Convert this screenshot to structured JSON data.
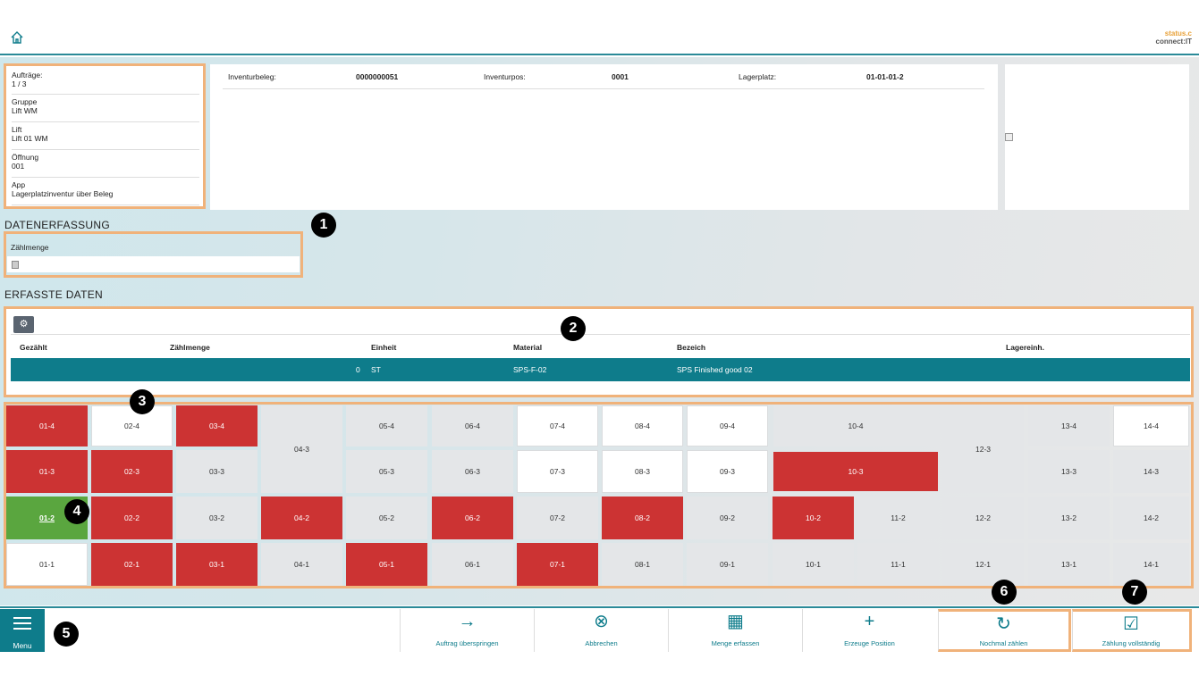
{
  "brand": {
    "line1": "status.c",
    "line2": "connect:IT"
  },
  "info": [
    {
      "label": "Aufträge:",
      "value": "1 / 3"
    },
    {
      "label": "Gruppe",
      "value": "Lift WM"
    },
    {
      "label": "Lift",
      "value": "Lift 01 WM"
    },
    {
      "label": "Öffnung",
      "value": "001"
    },
    {
      "label": "App",
      "value": "Lagerplatzinventur über Beleg"
    }
  ],
  "header": {
    "beleg_label": "Inventurbeleg:",
    "beleg_value": "0000000051",
    "pos_label": "Inventurpos:",
    "pos_value": "0001",
    "platz_label": "Lagerplatz:",
    "platz_value": "01-01-01-2"
  },
  "section1": {
    "title": "DATENERFASSUNG",
    "field_label": "Zählmenge",
    "field_value": ""
  },
  "section2": {
    "title": "ERFASSTE DATEN"
  },
  "table": {
    "columns": [
      "Gezählt",
      "Zählmenge",
      "Einheit",
      "Material",
      "Bezeich",
      "Lagereinh."
    ],
    "row": {
      "gezaehlt": "",
      "zaehlmenge": "0",
      "einheit": "ST",
      "material": "SPS-F-02",
      "bezeich": "SPS Finished good 02",
      "lagereinh": ""
    }
  },
  "grid": {
    "r4": [
      "01-4",
      "02-4",
      "03-4",
      "04-3",
      "05-4",
      "06-4",
      "07-4",
      "08-4",
      "09-4",
      "10-4",
      "12-3",
      "13-4",
      "14-4"
    ],
    "r3": [
      "01-3",
      "02-3",
      "03-3",
      "05-3",
      "06-3",
      "07-3",
      "08-3",
      "09-3",
      "10-3",
      "13-3",
      "14-3"
    ],
    "r2": [
      "01-2",
      "02-2",
      "03-2",
      "04-2",
      "05-2",
      "06-2",
      "07-2",
      "08-2",
      "09-2",
      "10-2",
      "11-2",
      "12-2",
      "13-2",
      "14-2"
    ],
    "r1": [
      "01-1",
      "02-1",
      "03-1",
      "04-1",
      "05-1",
      "06-1",
      "07-1",
      "08-1",
      "09-1",
      "10-1",
      "11-1",
      "12-1",
      "13-1",
      "14-1"
    ]
  },
  "footer": {
    "menu": "Menu",
    "actions": [
      "Auftrag überspringen",
      "Abbrechen",
      "Menge erfassen",
      "Erzeuge Position",
      "Nochmal zählen",
      "Zählung vollständig"
    ]
  },
  "badges": [
    "1",
    "2",
    "3",
    "4",
    "5",
    "6",
    "7"
  ],
  "colors": {
    "accent": "#0e7c8b",
    "red": "#cc3333",
    "green": "#5aa63f",
    "highlight": "#f0b27a"
  }
}
